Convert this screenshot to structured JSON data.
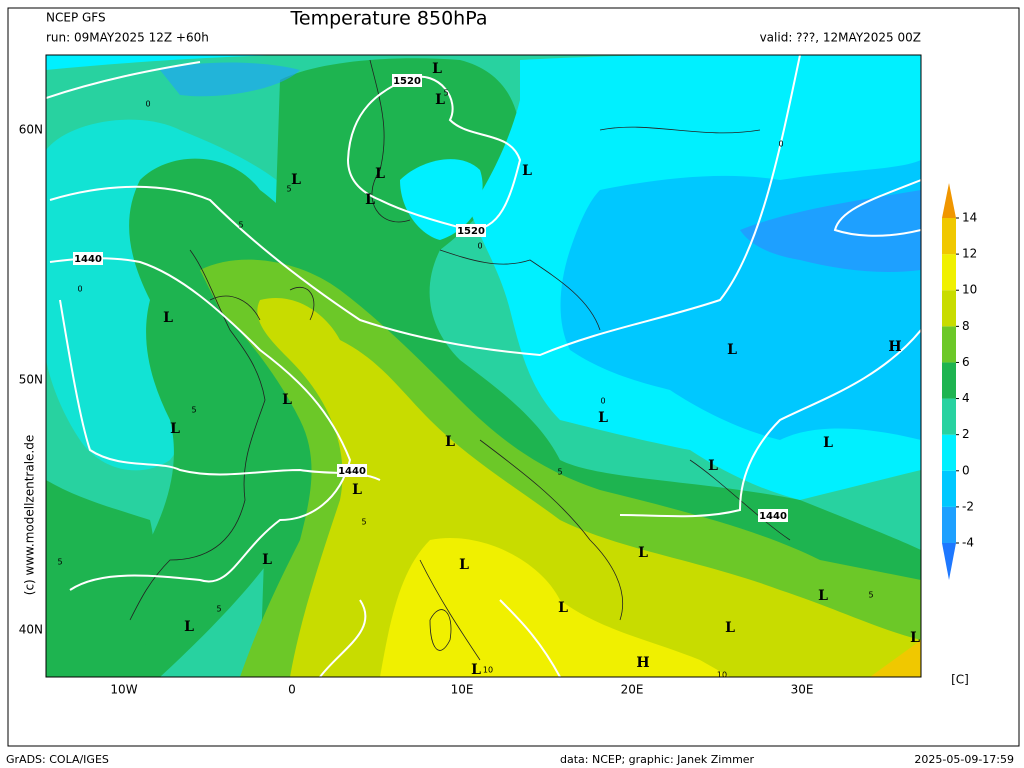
{
  "header": {
    "model": "NCEP GFS",
    "run": "run: 09MAY2025 12Z +60h",
    "title": "Temperature 850hPa",
    "valid": "valid: ???, 12MAY2025 00Z"
  },
  "map": {
    "lat_labels": [
      "60N",
      "50N",
      "40N"
    ],
    "lon_labels": [
      "10W",
      "0",
      "10E",
      "20E",
      "30E"
    ],
    "height_labels": [
      "1520",
      "1520",
      "1440",
      "1440",
      "1440"
    ],
    "isotherm_labels": [
      "0",
      "5",
      "5",
      "0",
      "0",
      "0",
      "5",
      "5",
      "5",
      "5",
      "5",
      "0",
      "5",
      "5",
      "10",
      "10"
    ],
    "pressure_centers": [
      "L",
      "L",
      "L",
      "L",
      "L",
      "L",
      "L",
      "L",
      "L",
      "L",
      "L",
      "L",
      "L",
      "L",
      "L",
      "L",
      "L",
      "L",
      "L",
      "L",
      "L",
      "H",
      "H",
      "L",
      "L",
      "L"
    ],
    "credit": "(c) www.modellzentrale.de"
  },
  "colorbar": {
    "ticks": [
      -4,
      -2,
      0,
      2,
      4,
      6,
      8,
      10,
      12,
      14
    ],
    "lim": [
      -4,
      14
    ],
    "colors": [
      "#1e78ff",
      "#1ea0ff",
      "#00c8ff",
      "#00f0ff",
      "#28d2a0",
      "#1eb450",
      "#6cc828",
      "#c8dc00",
      "#f0f000",
      "#f0c800",
      "#f09600"
    ],
    "unit": "[C]"
  },
  "footer": {
    "left": "GrADS: COLA/IGES",
    "center": "data: NCEP; graphic: Janek Zimmer",
    "right": "2025-05-09-17:59"
  }
}
